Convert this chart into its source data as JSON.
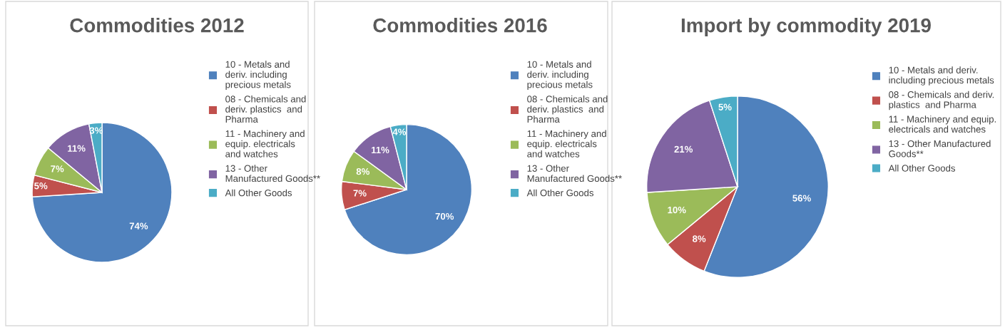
{
  "chart_data": [
    {
      "type": "pie",
      "title": "Commodities 2012",
      "categories": [
        "10 - Metals and deriv. including precious metals",
        "08 - Chemicals and deriv. plastics  and Pharma",
        "11 - Machinery and equip. electricals and watches",
        "13 - Other Manufactured Goods**",
        "All Other Goods"
      ],
      "values": [
        74,
        5,
        7,
        11,
        3
      ],
      "value_labels": [
        "74%",
        "5%",
        "7%",
        "11%",
        "3%"
      ],
      "colors": [
        "#4f81bd",
        "#c0504d",
        "#9bbb59",
        "#8064a2",
        "#4bacc6"
      ],
      "legend": "right"
    },
    {
      "type": "pie",
      "title": "Commodities 2016",
      "categories": [
        "10 - Metals and deriv. including precious metals",
        "08 - Chemicals and deriv. plastics  and Pharma",
        "11 - Machinery and equip. electricals and watches",
        "13 - Other Manufactured Goods**",
        "All Other Goods"
      ],
      "values": [
        70,
        7,
        8,
        11,
        4
      ],
      "value_labels": [
        "70%",
        "7%",
        "8%",
        "11%",
        "4%"
      ],
      "colors": [
        "#4f81bd",
        "#c0504d",
        "#9bbb59",
        "#8064a2",
        "#4bacc6"
      ],
      "legend": "right"
    },
    {
      "type": "pie",
      "title": "Import by commodity 2019",
      "categories": [
        "10 - Metals and deriv. including precious metals",
        "08 - Chemicals and deriv. plastics  and Pharma",
        "11 - Machinery and equip. electricals and watches",
        "13 - Other Manufactured Goods**",
        "All Other Goods"
      ],
      "values": [
        56,
        8,
        10,
        21,
        5
      ],
      "value_labels": [
        "56%",
        "8%",
        "10%",
        "21%",
        "5%"
      ],
      "colors": [
        "#4f81bd",
        "#c0504d",
        "#9bbb59",
        "#8064a2",
        "#4bacc6"
      ],
      "legend": "right"
    }
  ]
}
